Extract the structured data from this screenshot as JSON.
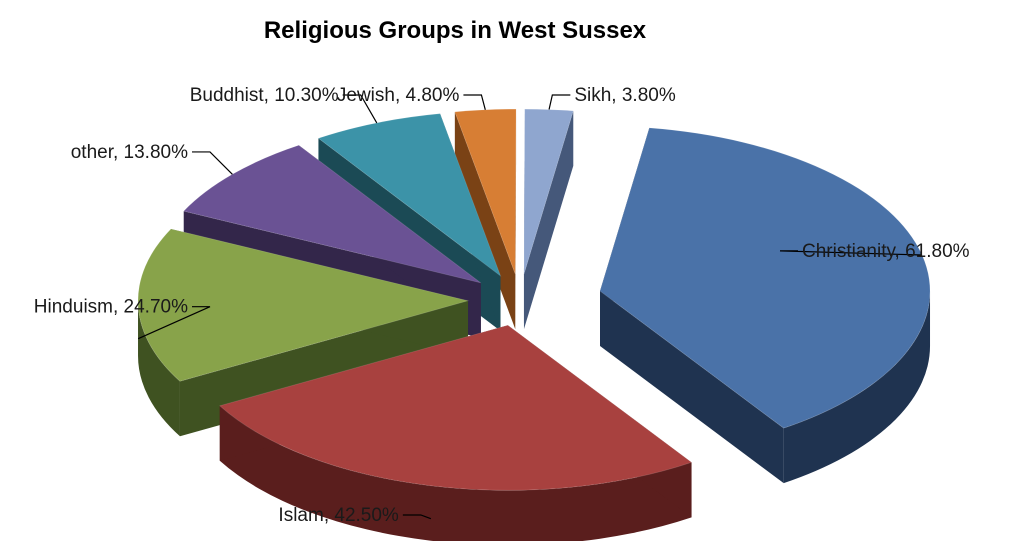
{
  "chart_data": {
    "type": "pie",
    "style": "3d-exploded",
    "title": "Religious Groups in West Sussex",
    "categories": [
      "Christianity",
      "Islam",
      "Hinduism",
      "other",
      "Buddhist",
      "Jewish",
      "Sikh"
    ],
    "values": [
      61.8,
      42.5,
      24.7,
      13.8,
      10.3,
      4.8,
      3.8
    ],
    "unit": "%",
    "data_labels": [
      "Christianity, 61.80%",
      "Islam, 42.50%",
      "Hinduism, 24.70%",
      "other, 13.80%",
      "Buddhist, 10.30%",
      "Jewish, 4.80%",
      "Sikh, 3.80%"
    ],
    "colors": [
      "#4A72A8",
      "#A8413F",
      "#88A34A",
      "#6A5294",
      "#3C93A8",
      "#D77E34",
      "#8FA6CF"
    ],
    "side_colors": [
      "#1F3350",
      "#5A1E1D",
      "#3F5221",
      "#33264A",
      "#1B4A55",
      "#7A4215",
      "#45587A"
    ],
    "legend": "none"
  }
}
